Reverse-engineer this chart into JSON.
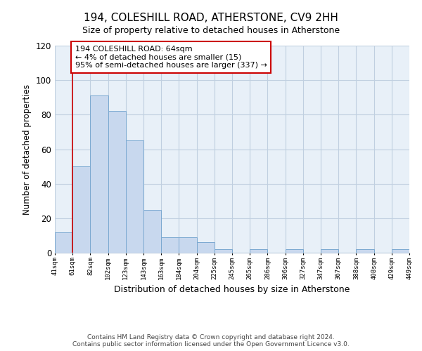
{
  "title": "194, COLESHILL ROAD, ATHERSTONE, CV9 2HH",
  "subtitle": "Size of property relative to detached houses in Atherstone",
  "xlabel": "Distribution of detached houses by size in Atherstone",
  "ylabel": "Number of detached properties",
  "bin_labels": [
    "41sqm",
    "61sqm",
    "82sqm",
    "102sqm",
    "123sqm",
    "143sqm",
    "163sqm",
    "184sqm",
    "204sqm",
    "225sqm",
    "245sqm",
    "265sqm",
    "286sqm",
    "306sqm",
    "327sqm",
    "347sqm",
    "367sqm",
    "388sqm",
    "408sqm",
    "429sqm",
    "449sqm"
  ],
  "bar_values": [
    12,
    50,
    91,
    82,
    65,
    25,
    9,
    9,
    6,
    2,
    0,
    2,
    0,
    2,
    0,
    2,
    0,
    2,
    0,
    2
  ],
  "bar_color": "#c8d8ee",
  "bar_edge_color": "#7aa8d0",
  "plot_bg_color": "#e8f0f8",
  "ylim": [
    0,
    120
  ],
  "yticks": [
    0,
    20,
    40,
    60,
    80,
    100,
    120
  ],
  "vline_x": 1,
  "vline_color": "#cc0000",
  "annotation_text": "194 COLESHILL ROAD: 64sqm\n← 4% of detached houses are smaller (15)\n95% of semi-detached houses are larger (337) →",
  "annotation_box_color": "#ffffff",
  "annotation_box_edge": "#cc0000",
  "footer_line1": "Contains HM Land Registry data © Crown copyright and database right 2024.",
  "footer_line2": "Contains public sector information licensed under the Open Government Licence v3.0.",
  "background_color": "#ffffff",
  "grid_color": "#c0cfe0"
}
